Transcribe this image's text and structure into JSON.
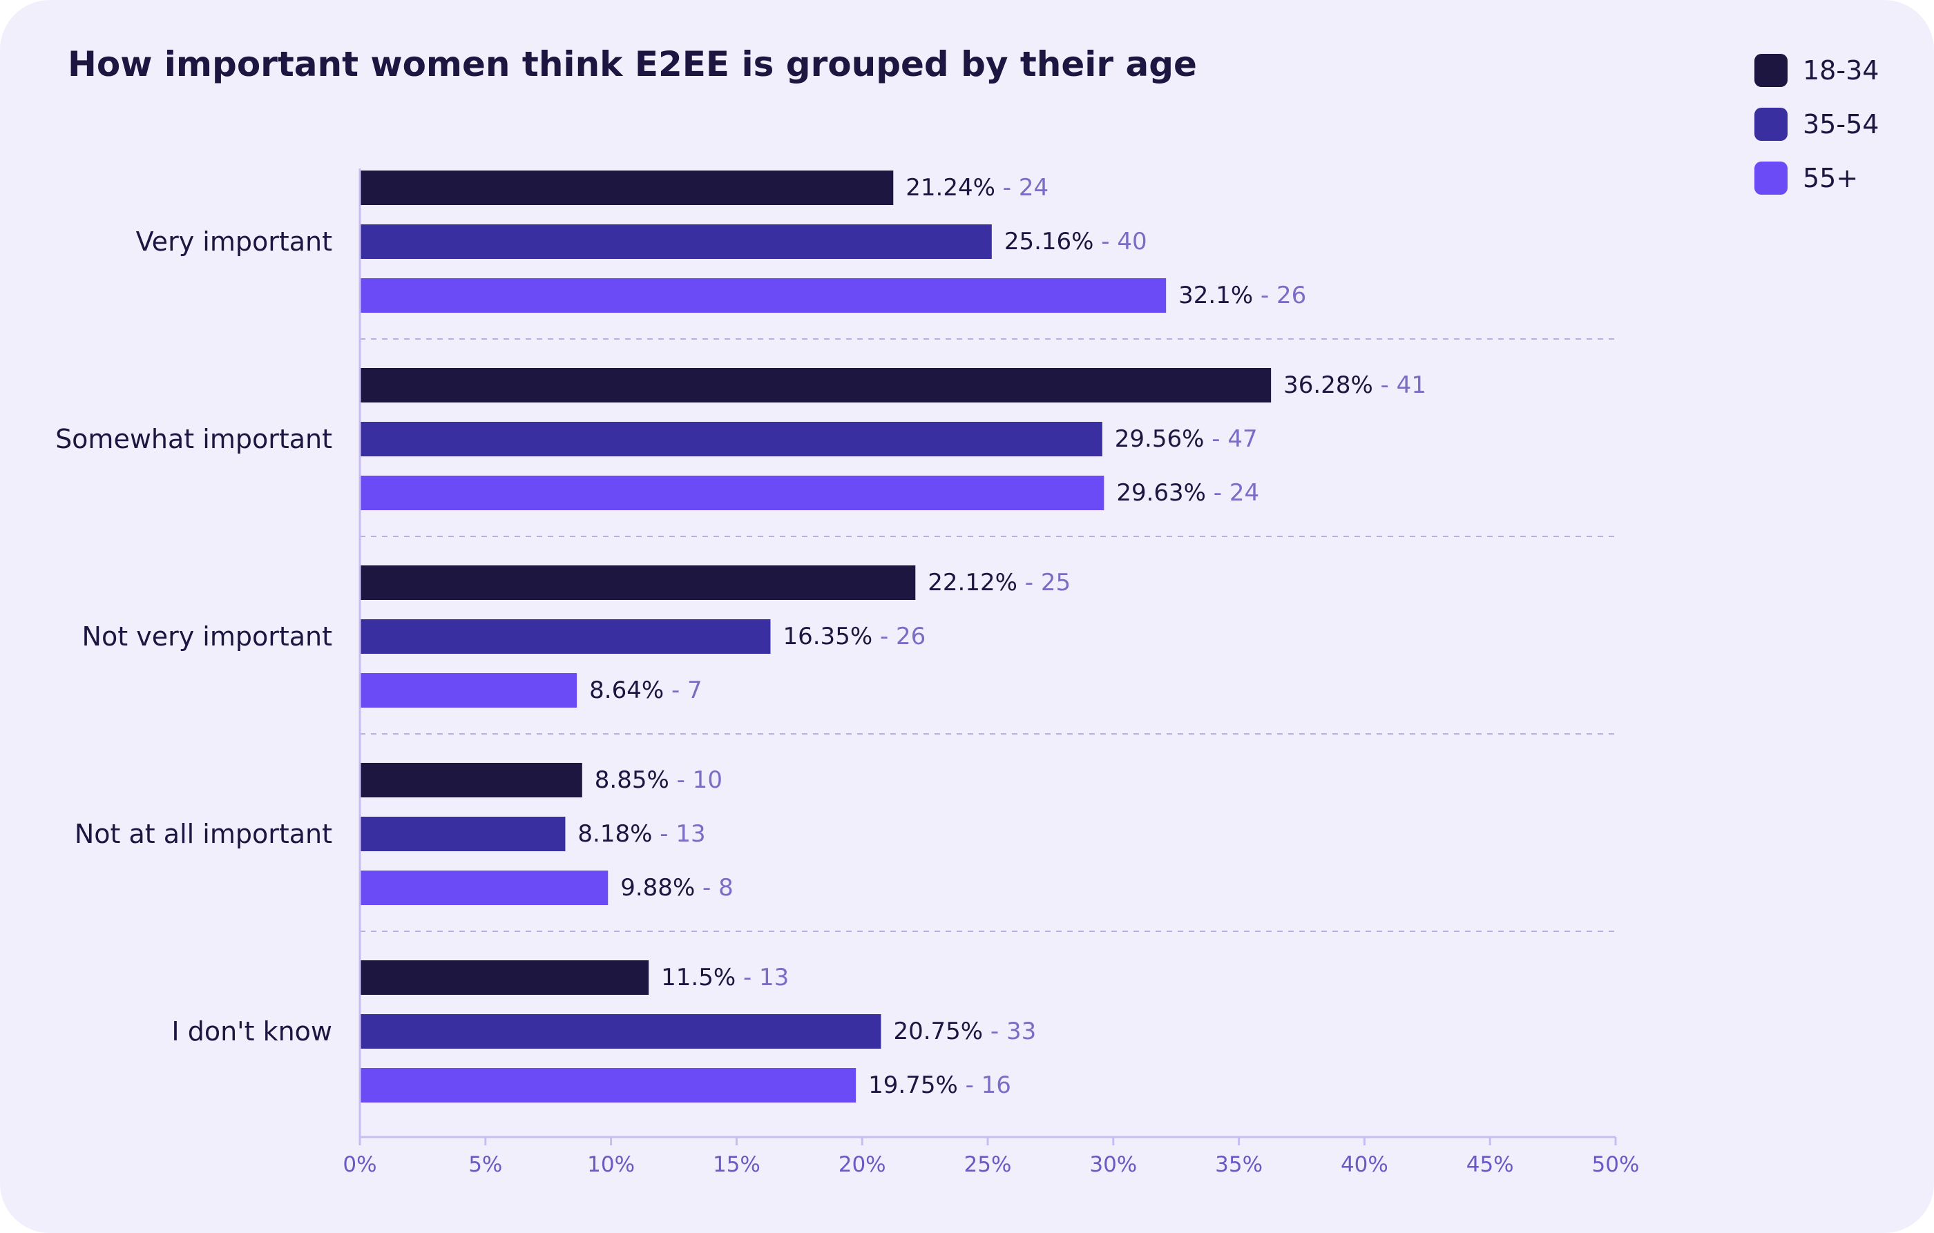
{
  "chart_data": {
    "type": "bar",
    "orientation": "horizontal",
    "title": "How important women think E2EE is grouped by their age",
    "categories": [
      "Very important",
      "Somewhat important",
      "Not very important",
      "Not at all important",
      "I don't know"
    ],
    "series": [
      {
        "name": "18-34",
        "color": "#1c1640",
        "values": [
          21.24,
          36.28,
          22.12,
          8.85,
          11.5
        ],
        "value_labels": [
          "21.24%",
          "36.28%",
          "22.12%",
          "8.85%",
          "11.5%"
        ],
        "counts": [
          24,
          41,
          25,
          10,
          13
        ]
      },
      {
        "name": "35-54",
        "color": "#3a2fa0",
        "values": [
          25.16,
          29.56,
          16.35,
          8.18,
          20.75
        ],
        "value_labels": [
          "25.16%",
          "29.56%",
          "16.35%",
          "8.18%",
          "20.75%"
        ],
        "counts": [
          40,
          47,
          26,
          13,
          33
        ]
      },
      {
        "name": "55+",
        "color": "#6b4bf6",
        "values": [
          32.1,
          29.63,
          8.64,
          9.88,
          19.75
        ],
        "value_labels": [
          "32.1%",
          "29.63%",
          "8.64%",
          "9.88%",
          "19.75%"
        ],
        "counts": [
          26,
          24,
          7,
          8,
          16
        ]
      }
    ],
    "xlim": [
      0,
      50
    ],
    "xticks": [
      "0%",
      "5%",
      "10%",
      "15%",
      "20%",
      "25%",
      "30%",
      "35%",
      "40%",
      "45%",
      "50%"
    ],
    "grid": false,
    "legend_position": "top-right",
    "colors": {
      "background": "#f1effc",
      "text": "#1c1640",
      "count_text": "#7d6cc4",
      "axis": "#c7bdf2",
      "tick_text": "#6a5bc4",
      "separator": "#b8aee6"
    }
  }
}
